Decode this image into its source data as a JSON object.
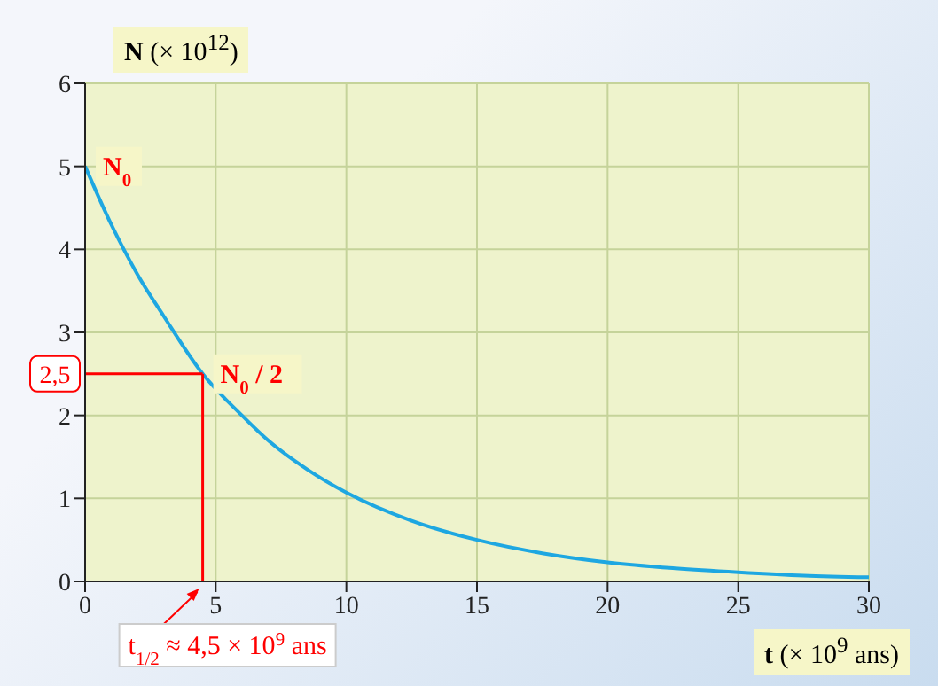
{
  "chart_data": {
    "type": "line",
    "xlabel": "t (× 10$^{9}$ ans)",
    "ylabel": "N (× 10$^{12}$)",
    "x": [
      0,
      1,
      2,
      3,
      4.5,
      6,
      7,
      8.5,
      10,
      12.5,
      15,
      17.5,
      20,
      22.5,
      25,
      27.5,
      30
    ],
    "series": [
      {
        "color": "#1ea7e1",
        "values": [
          5,
          4.3,
          3.7,
          3.2,
          2.5,
          2,
          1.7,
          1.35,
          1.07,
          0.73,
          0.5,
          0.34,
          0.23,
          0.16,
          0.11,
          0.07,
          0.05
        ]
      }
    ],
    "xlim": [
      0,
      30
    ],
    "xticks": [
      0,
      5,
      10,
      15,
      20,
      25,
      30
    ],
    "ylim": [
      0,
      6
    ],
    "yticks": [
      0,
      1,
      2,
      3,
      4,
      5,
      6
    ],
    "grid": true,
    "marker": "none",
    "line_style": "solid",
    "ref_lines": [
      {
        "axis": "y",
        "value": 2.5,
        "label": "2,5",
        "color": "#ff0000"
      },
      {
        "axis": "x",
        "value": 4.5,
        "label": "t$_{1/2}$ ≈ 4,5 × 10$^{9}$ ans",
        "color": "#ff0000"
      }
    ],
    "annotations": [
      {
        "text": "N$_{0}$",
        "x": 0,
        "y": 5
      },
      {
        "text": "N$_{0}$ / 2",
        "x": 4.5,
        "y": 2.5
      }
    ]
  }
}
